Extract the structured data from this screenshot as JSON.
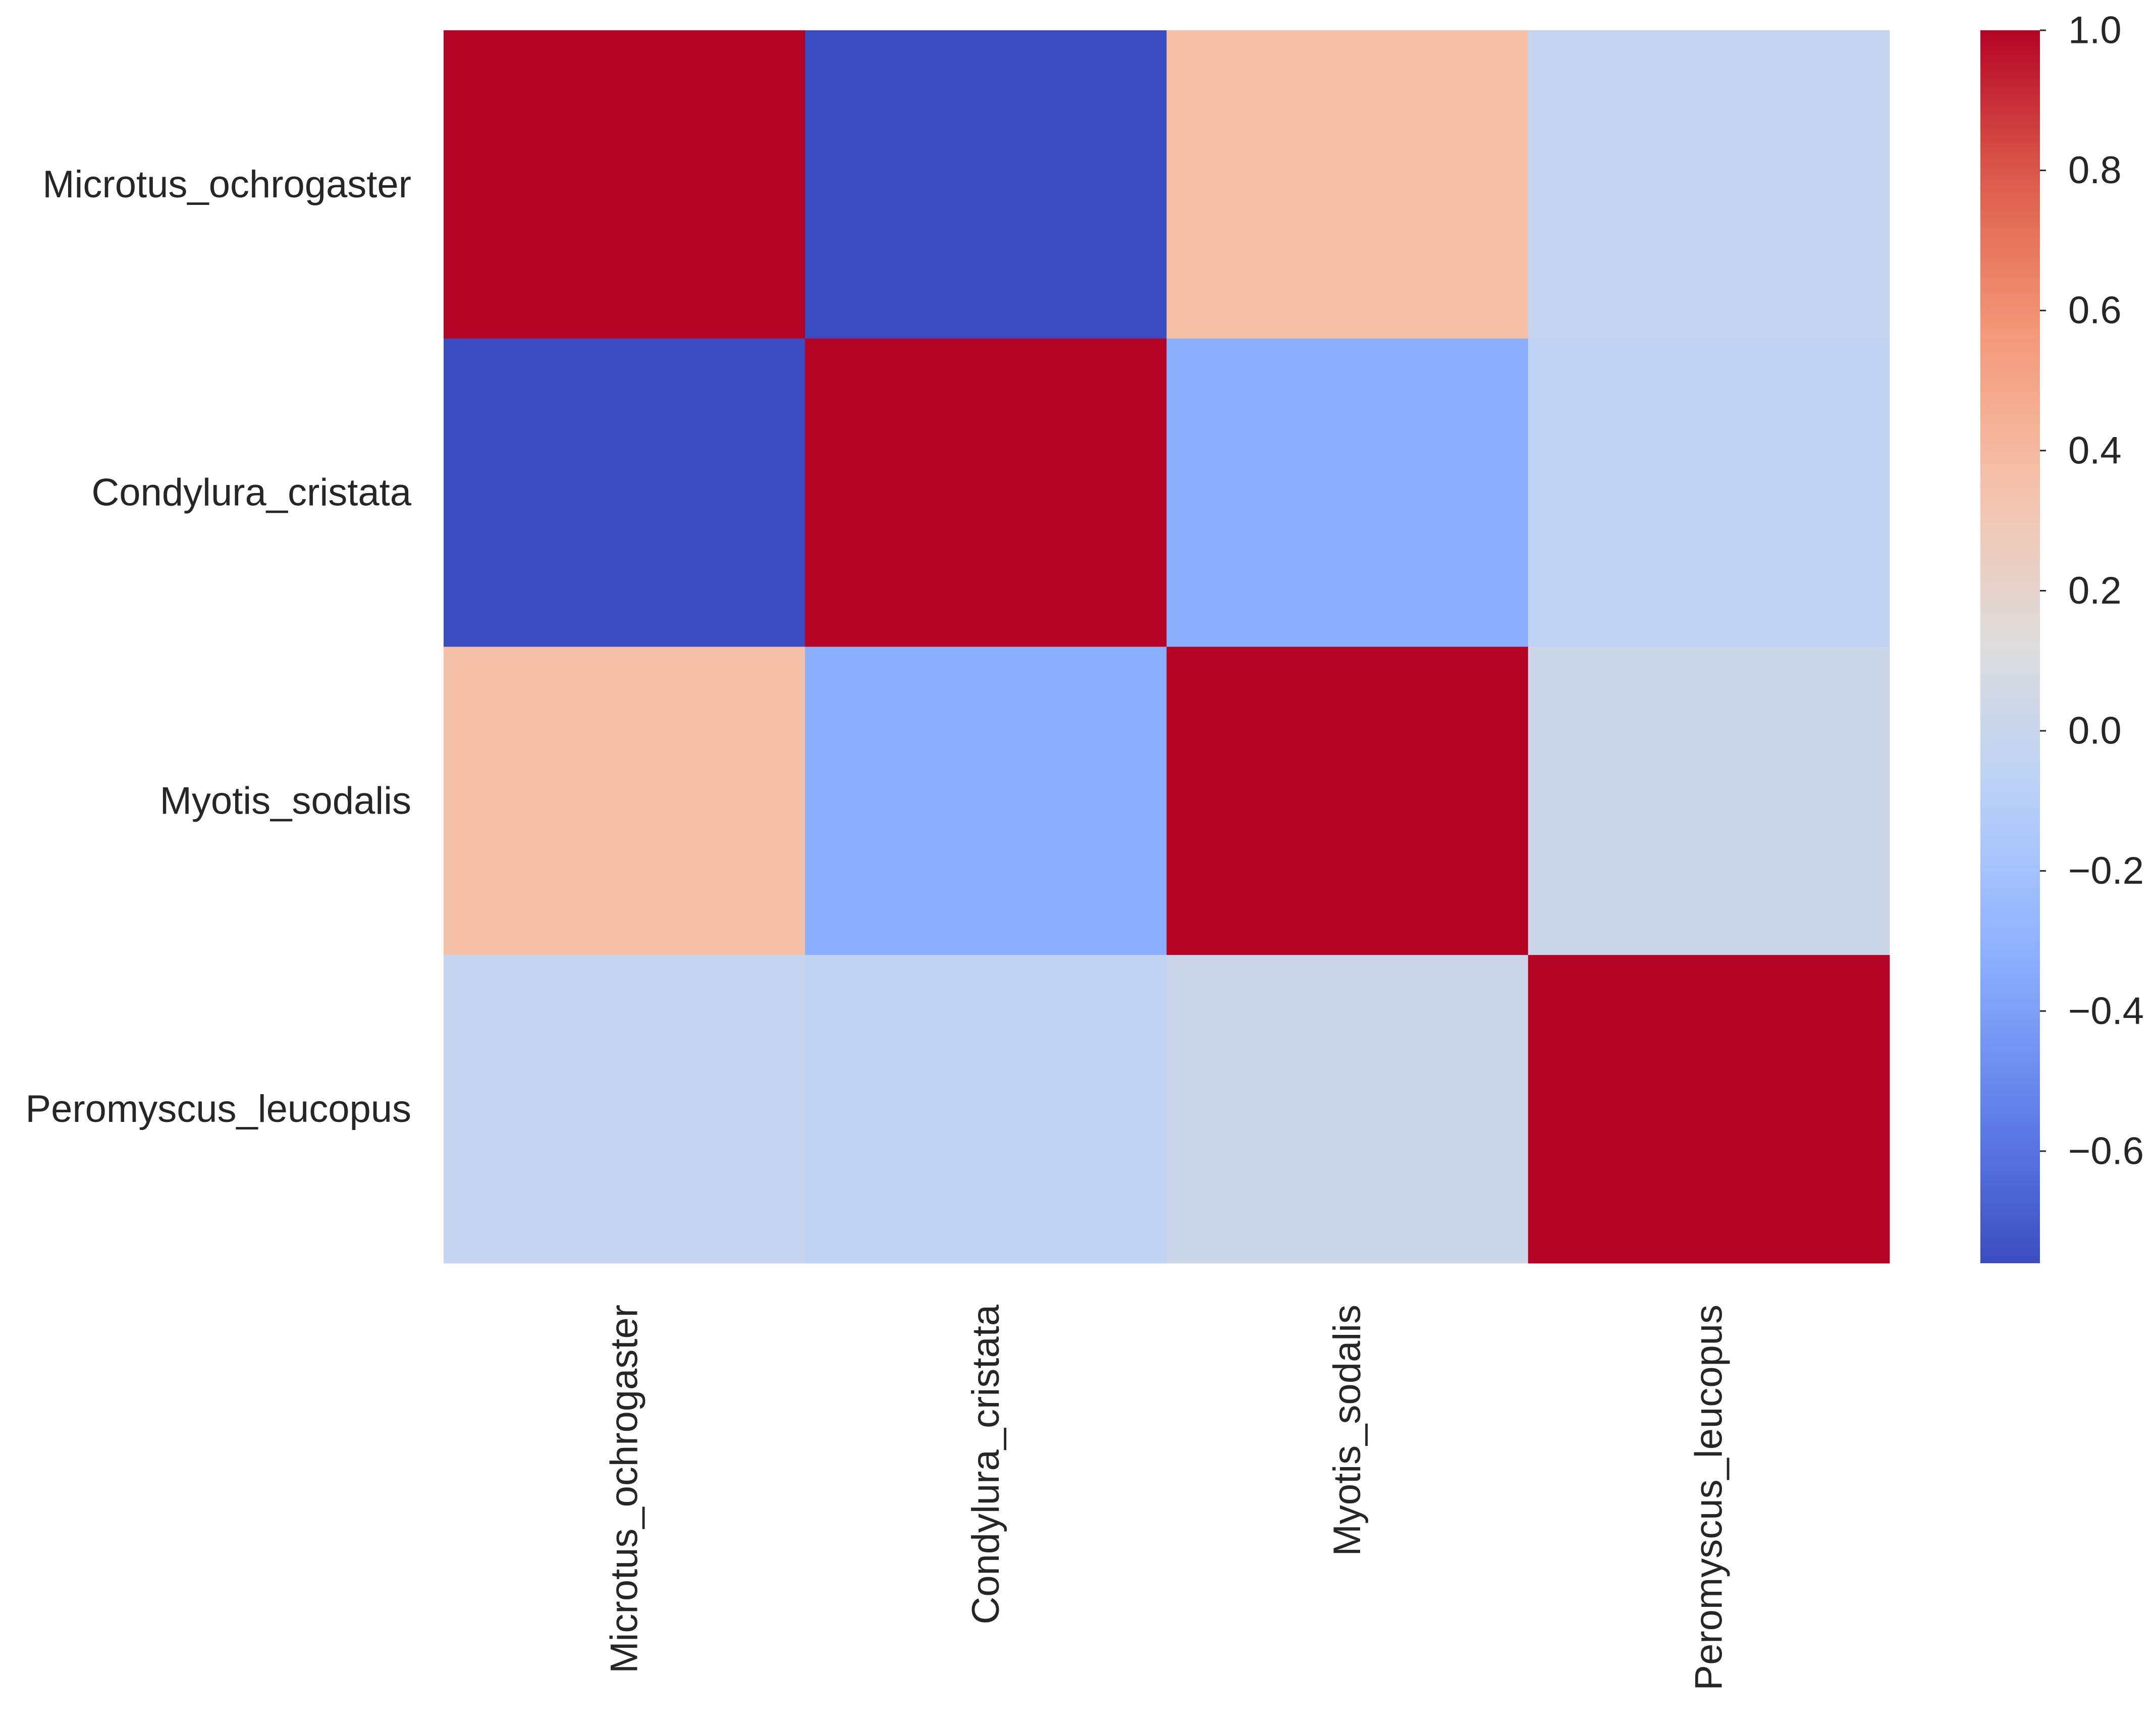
{
  "chart_data": {
    "type": "heatmap",
    "title": "",
    "xlabel": "",
    "ylabel": "",
    "rows": [
      "Microtus_ochrogaster",
      "Condylura_cristata",
      "Myotis_sodalis",
      "Peromyscus_leucopus"
    ],
    "columns": [
      "Microtus_ochrogaster",
      "Condylura_cristata",
      "Myotis_sodalis",
      "Peromyscus_leucopus"
    ],
    "values": [
      [
        1.0,
        -0.76,
        0.36,
        -0.02
      ],
      [
        -0.76,
        1.0,
        -0.33,
        -0.05
      ],
      [
        0.36,
        -0.33,
        1.0,
        0.02
      ],
      [
        -0.02,
        -0.05,
        0.02,
        1.0
      ]
    ],
    "colormap": "coolwarm",
    "vmin": -0.76,
    "vmax": 1.0,
    "colorbar": {
      "ticks": [
        1.0,
        0.8,
        0.6,
        0.4,
        0.2,
        0.0,
        -0.2,
        -0.4,
        -0.6
      ],
      "tick_labels": [
        "1.0",
        "0.8",
        "0.6",
        "0.4",
        "0.2",
        "0.0",
        "−0.2",
        "−0.4",
        "−0.6"
      ]
    }
  }
}
